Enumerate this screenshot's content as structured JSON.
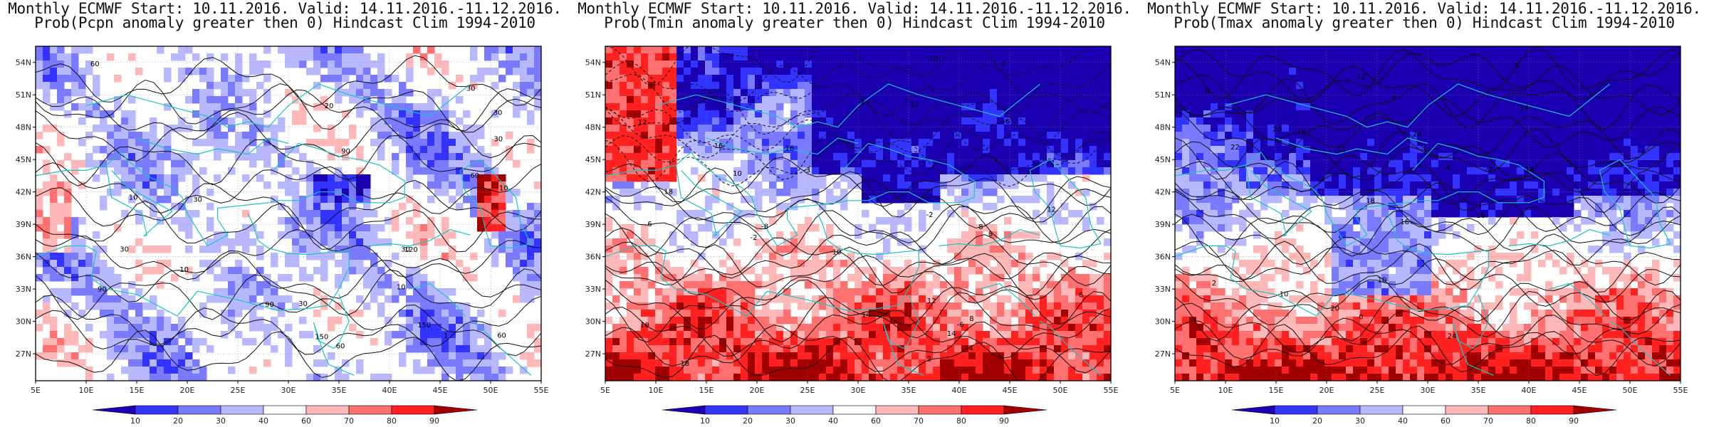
{
  "panels": [
    {
      "title_line1": "Monthly ECMWF Start: 10.11.2016. Valid: 14.11.2016.-11.12.2016.",
      "title_line2": "Prob(Pcpn anomaly greater then 0) Hindcast Clim 1994-2010",
      "variable": "Pcpn",
      "contour_labels": [
        "60",
        "30",
        "150",
        "90",
        "120",
        "60",
        "30",
        "90",
        "20",
        "150",
        "30",
        "10",
        "60",
        "30",
        "30",
        "30",
        "90",
        "60",
        "10",
        "10",
        "1",
        "10",
        "30"
      ],
      "palette": "blue-dominant"
    },
    {
      "title_line1": "Monthly ECMWF Start: 10.11.2016. Valid: 14.11.2016.-11.12.2016.",
      "title_line2": "Prob(Tmin anomaly greater then 0) Hindcast Clim 1994-2010",
      "variable": "Tmin",
      "contour_labels": [
        "-8",
        "-6",
        "-2",
        "0",
        "-2",
        "-4",
        "-3",
        "-6",
        "2",
        "8",
        "14",
        "10",
        "16",
        "12",
        "18",
        "10",
        "14",
        "16",
        "12",
        "-2",
        "12",
        "8",
        "6",
        "10",
        "6",
        "18",
        "12",
        "10",
        "8"
      ],
      "palette": "red-south-blue-north"
    },
    {
      "title_line1": "Monthly ECMWF Start: 10.11.2016. Valid: 14.11.2016.-11.12.2016.",
      "title_line2": "Prob(Tmax anomaly greater then 0) Hindcast Clim 1994-2010",
      "variable": "Tmax",
      "contour_labels": [
        "-2",
        "-4",
        "0",
        "2",
        "4",
        "6",
        "8",
        "10",
        "12",
        "14",
        "16",
        "18",
        "20",
        "22",
        "24",
        "12",
        "10",
        "14",
        "18",
        "16",
        "20",
        "22",
        "24"
      ],
      "palette": "blue-north-red-south"
    }
  ],
  "axes": {
    "lat_ticks": [
      "54N",
      "51N",
      "48N",
      "45N",
      "42N",
      "39N",
      "36N",
      "33N",
      "30N",
      "27N"
    ],
    "lon_ticks": [
      "5E",
      "10E",
      "15E",
      "20E",
      "25E",
      "30E",
      "35E",
      "40E",
      "45E",
      "50E",
      "55E"
    ]
  },
  "colorbar": {
    "ticks": [
      "10",
      "20",
      "30",
      "40",
      "60",
      "70",
      "80",
      "90"
    ],
    "colors": [
      "#1a00b0",
      "#3333ff",
      "#7a7aff",
      "#b8b8ff",
      "#ffffff",
      "#ffb8b8",
      "#ff7070",
      "#ff2020",
      "#a00000"
    ]
  }
}
